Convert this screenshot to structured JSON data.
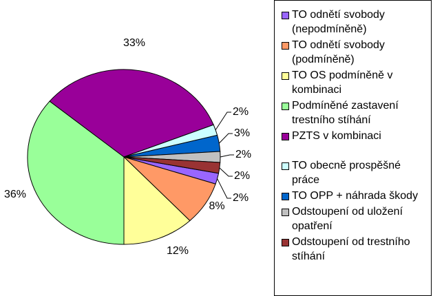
{
  "chart_data": {
    "type": "pie",
    "series": [
      {
        "name": "TO odnětí svobody (nepodmíněně)",
        "color": "#9966ff"
      },
      {
        "name": "TO odnětí svobody (podmíněně)",
        "color": "#ff9966"
      },
      {
        "name": "TO OS podmíněně v kombinaci",
        "color": "#ffff99"
      },
      {
        "name": "Podmíněné zastavení trestního stíhání",
        "color": "#99ff99"
      },
      {
        "name": "PZTS v kombinaci",
        "color": "#990099"
      },
      {
        "name": "TO obecně prospěšné práce",
        "color": "#ccffff"
      },
      {
        "name": "TO OPP + náhrada škody",
        "color": "#0066cc"
      },
      {
        "name": "Odstoupení od uložení opatření",
        "color": "#c0c0c0"
      },
      {
        "name": "Odstoupení od trestního stíhání",
        "color": "#993333"
      }
    ],
    "values": [
      2,
      8,
      12,
      36,
      33,
      2,
      3,
      2,
      2
    ],
    "value_labels": [
      "2%",
      "8%",
      "12%",
      "36%",
      "33%",
      "2%",
      "3%",
      "2%",
      "2%"
    ]
  }
}
